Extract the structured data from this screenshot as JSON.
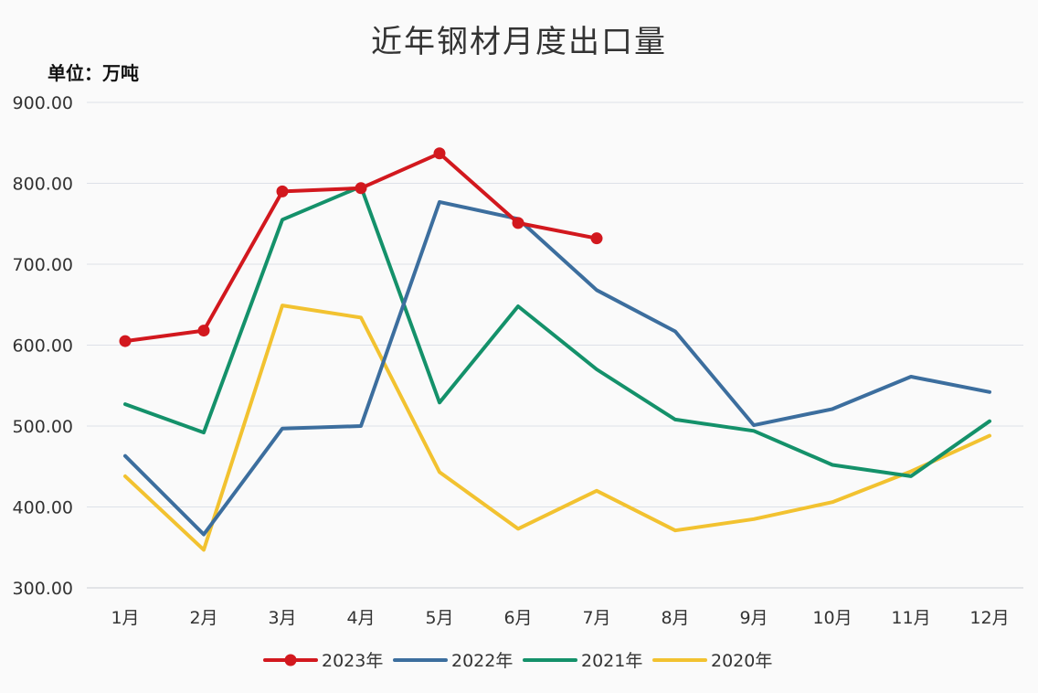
{
  "chart_data": {
    "type": "line",
    "title": "近年钢材月度出口量",
    "unit_label": "单位：万吨",
    "categories": [
      "1月",
      "2月",
      "3月",
      "4月",
      "5月",
      "6月",
      "7月",
      "8月",
      "9月",
      "10月",
      "11月",
      "12月"
    ],
    "ylim": [
      300,
      900
    ],
    "yticks": [
      "300.00",
      "400.00",
      "500.00",
      "600.00",
      "700.00",
      "800.00",
      "900.00"
    ],
    "grid": true,
    "legend_position": "bottom",
    "series": [
      {
        "name": "2023年",
        "color": "#d2181e",
        "markers": true,
        "values": [
          605,
          618,
          790,
          794,
          837,
          751,
          732,
          null,
          null,
          null,
          null,
          null
        ]
      },
      {
        "name": "2022年",
        "color": "#3c6e9e",
        "markers": false,
        "values": [
          463,
          366,
          497,
          500,
          777,
          756,
          668,
          617,
          501,
          521,
          561,
          542
        ]
      },
      {
        "name": "2021年",
        "color": "#14916a",
        "markers": false,
        "values": [
          527,
          492,
          755,
          796,
          529,
          648,
          570,
          508,
          494,
          452,
          438,
          506
        ]
      },
      {
        "name": "2020年",
        "color": "#f2c230",
        "markers": false,
        "values": [
          438,
          347,
          649,
          634,
          443,
          373,
          420,
          371,
          385,
          406,
          444,
          488
        ]
      }
    ]
  }
}
